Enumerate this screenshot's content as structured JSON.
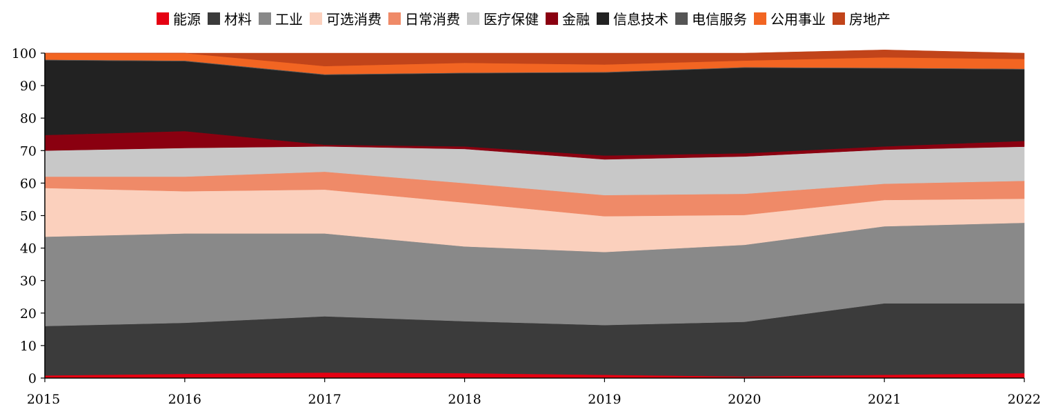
{
  "chart_data": {
    "type": "area",
    "stacked": true,
    "title": "",
    "xlabel": "",
    "ylabel": "",
    "x": [
      "2015",
      "2016",
      "2017",
      "2018",
      "2019",
      "2020",
      "2021",
      "2022"
    ],
    "ylim": [
      0,
      100
    ],
    "yticks": [
      "0",
      "10",
      "20",
      "30",
      "40",
      "50",
      "60",
      "70",
      "80",
      "90",
      "100"
    ],
    "grid": false,
    "legend_position": "top",
    "series": [
      {
        "name": "能源",
        "color": "#e50012",
        "values": [
          0.8,
          1.3,
          1.7,
          1.5,
          1.0,
          0.5,
          1.0,
          1.5
        ]
      },
      {
        "name": "材料",
        "color": "#3b3b3b",
        "values": [
          15.2,
          15.7,
          17.3,
          16.0,
          15.3,
          16.8,
          22.0,
          21.5
        ]
      },
      {
        "name": "工业",
        "color": "#898989",
        "values": [
          27.5,
          27.5,
          25.5,
          23.0,
          22.5,
          23.7,
          23.7,
          24.8
        ]
      },
      {
        "name": "可选消费",
        "color": "#fbd0bd",
        "values": [
          15.0,
          13.0,
          13.5,
          13.5,
          11.0,
          9.2,
          8.1,
          7.4
        ]
      },
      {
        "name": "日常消费",
        "color": "#ef8a68",
        "values": [
          3.5,
          4.5,
          5.5,
          6.0,
          6.5,
          6.5,
          5.0,
          5.5
        ]
      },
      {
        "name": "医疗保健",
        "color": "#c8c8c8",
        "values": [
          8.0,
          8.8,
          7.8,
          10.5,
          11.0,
          11.5,
          10.5,
          10.5
        ]
      },
      {
        "name": "金融",
        "color": "#8a0010",
        "values": [
          4.8,
          5.2,
          0.5,
          0.8,
          1.2,
          1.0,
          1.0,
          1.8
        ]
      },
      {
        "name": "信息技术",
        "color": "#222222",
        "values": [
          23.0,
          21.5,
          21.5,
          22.5,
          25.5,
          26.3,
          24.0,
          22.0
        ]
      },
      {
        "name": "电信服务",
        "color": "#555555",
        "values": [
          0.2,
          0.2,
          0.2,
          0.2,
          0.2,
          0.2,
          0.2,
          0.2
        ]
      },
      {
        "name": "公用事业",
        "color": "#f26522",
        "values": [
          2.0,
          2.3,
          2.5,
          3.0,
          2.3,
          2.0,
          3.2,
          3.0
        ]
      },
      {
        "name": "房地产",
        "color": "#c1441a",
        "values": [
          0.0,
          0.0,
          4.0,
          3.0,
          3.5,
          2.3,
          2.3,
          1.8
        ]
      }
    ]
  }
}
